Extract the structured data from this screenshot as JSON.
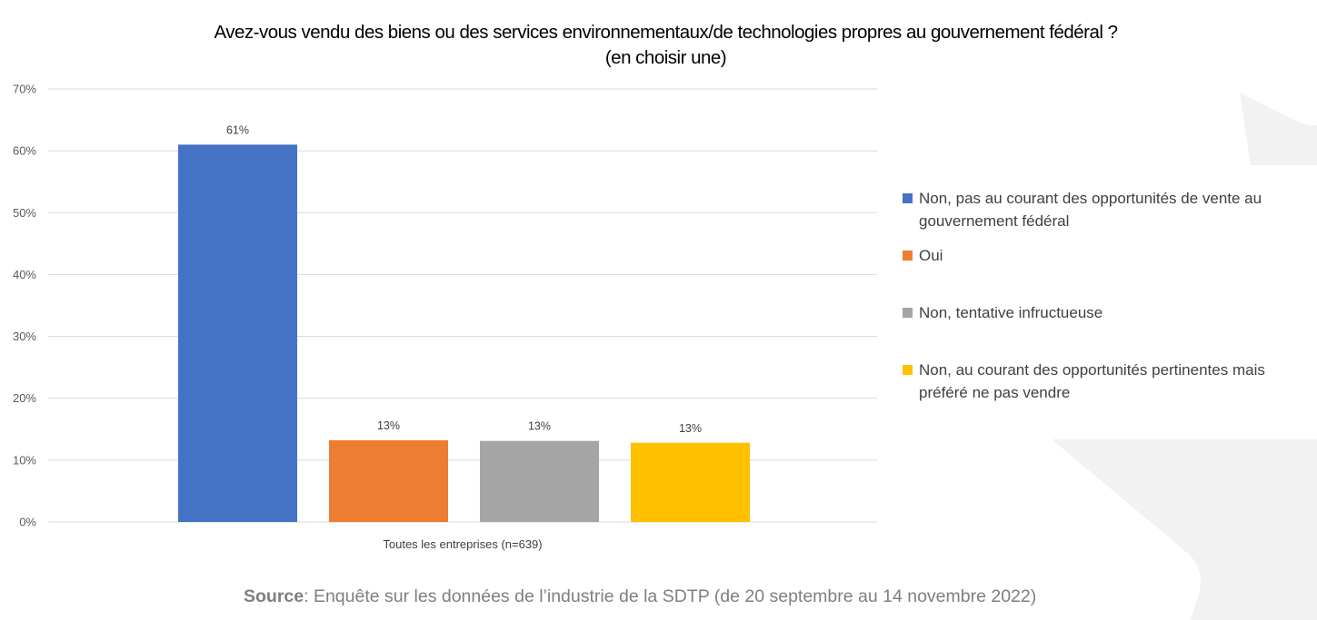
{
  "chart_data": {
    "type": "bar",
    "title": "Avez-vous vendu des biens ou des services environnementaux/de technologies propres au gouvernement fédéral ?",
    "subtitle": "(en choisir une)",
    "xlabel": "",
    "ylabel": "",
    "categories": [
      "Toutes les entreprises (n=639)"
    ],
    "series": [
      {
        "name": "Non, pas au courant des opportunités de vente au gouvernement fédéral",
        "values": [
          61
        ],
        "label": "61%",
        "color": "#4472C4"
      },
      {
        "name": "Oui",
        "values": [
          13.2
        ],
        "label": "13%",
        "color": "#ED7D31"
      },
      {
        "name": "Non, tentative infructueuse",
        "values": [
          13.1
        ],
        "label": "13%",
        "color": "#A5A5A5"
      },
      {
        "name": "Non, au courant des opportunités pertinentes mais préféré ne pas vendre",
        "values": [
          12.8
        ],
        "label": "13%",
        "color": "#FFC000"
      }
    ],
    "ylim": [
      0,
      70
    ],
    "yticks": [
      0,
      10,
      20,
      30,
      40,
      50,
      60,
      70
    ],
    "ytick_labels": [
      "0%",
      "10%",
      "20%",
      "30%",
      "40%",
      "50%",
      "60%",
      "70%"
    ],
    "grid": true,
    "legend_position": "right",
    "legend": [
      "Non, pas au courant des opportunités de vente au gouvernement fédéral",
      "Oui",
      "Non, tentative infructueuse",
      "Non, au courant des opportunités pertinentes mais préféré ne pas vendre"
    ]
  },
  "title_line1": "Avez-vous vendu des biens ou des services environnementaux/de technologies propres au gouvernement fédéral ?",
  "title_line2": "(en choisir une)",
  "source": {
    "label": "Source",
    "text": ": Enquête sur les données de l’industrie de la SDTP (de 20 septembre au 14 novembre 2022)"
  },
  "colors": {
    "gridline": "#D9D9D9",
    "axis_text": "#595959",
    "background_shape": "#F2F2F2"
  }
}
